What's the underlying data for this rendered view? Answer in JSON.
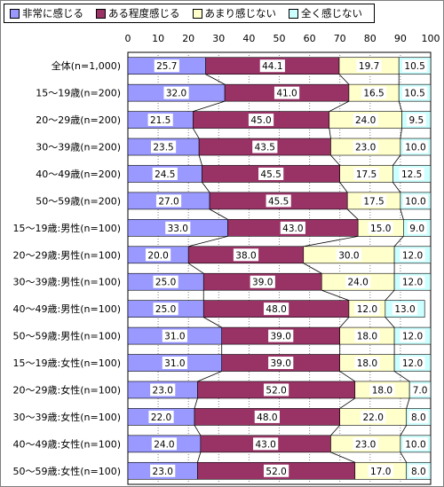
{
  "chart_data": {
    "type": "bar",
    "stacked": "percent",
    "orientation": "horizontal",
    "title": "",
    "xlabel": "",
    "ylabel": "",
    "xlim": [
      0,
      100
    ],
    "xticks": [
      "0",
      "10",
      "20",
      "30",
      "40",
      "50",
      "60",
      "70",
      "80",
      "90",
      "100"
    ],
    "legend_position": "top-left",
    "grid": true,
    "series_lines": true,
    "categories": [
      "全体(n=1,000)",
      "15～19歳(n=200)",
      "20～29歳(n=200)",
      "30～39歳(n=200)",
      "40～49歳(n=200)",
      "50～59歳(n=200)",
      "15～19歳:男性(n=100)",
      "20～29歳:男性(n=100)",
      "30～39歳:男性(n=100)",
      "40～49歳:男性(n=100)",
      "50～59歳:男性(n=100)",
      "15～19歳:女性(n=100)",
      "20～29歳:女性(n=100)",
      "30～39歳:女性(n=100)",
      "40～49歳:女性(n=100)",
      "50～59歳:女性(n=100)"
    ],
    "series": [
      {
        "name": "非常に感じる",
        "color": "#9999ff",
        "values": [
          25.7,
          32.0,
          21.5,
          23.5,
          24.5,
          27.0,
          33.0,
          20.0,
          25.0,
          25.0,
          31.0,
          31.0,
          23.0,
          22.0,
          24.0,
          23.0
        ]
      },
      {
        "name": "ある程度感じる",
        "color": "#993366",
        "values": [
          44.1,
          41.0,
          45.0,
          43.5,
          45.5,
          45.5,
          43.0,
          38.0,
          39.0,
          48.0,
          39.0,
          39.0,
          52.0,
          48.0,
          43.0,
          52.0
        ]
      },
      {
        "name": "あまり感じない",
        "color": "#ffffcc",
        "values": [
          19.7,
          16.5,
          24.0,
          23.0,
          17.5,
          17.5,
          15.0,
          30.0,
          24.0,
          12.0,
          18.0,
          18.0,
          18.0,
          22.0,
          23.0,
          17.0
        ]
      },
      {
        "name": "全く感じない",
        "color": "#ccffff",
        "values": [
          10.5,
          10.5,
          9.5,
          10.0,
          12.5,
          10.0,
          9.0,
          12.0,
          12.0,
          13.0,
          12.0,
          12.0,
          7.0,
          8.0,
          10.0,
          8.0
        ]
      }
    ]
  }
}
